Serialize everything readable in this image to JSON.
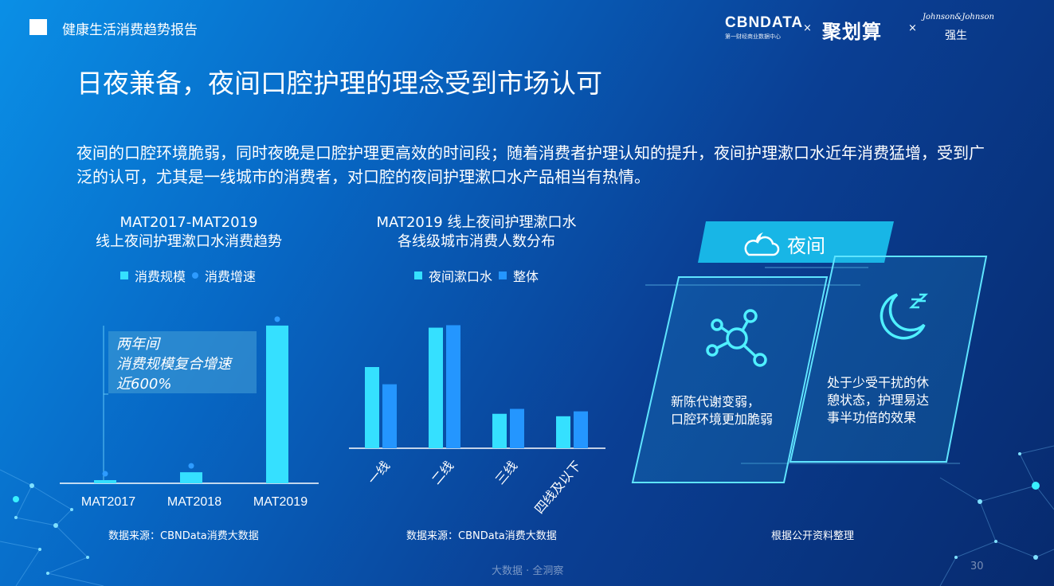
{
  "header": {
    "report_title": "健康生活消费趋势报告",
    "logo_cbndata": "CBNDATA",
    "logo_cbndata_sub": "第一财经商业数据中心",
    "logo_sep": "×",
    "logo_juhuasuan": "聚划算",
    "logo_jj": "Johnson&Johnson",
    "logo_jj_cn": "强生"
  },
  "page": {
    "title": "日夜兼备，夜间口腔护理的理念受到市场认可",
    "intro": "夜间的口腔环境脆弱，同时夜晚是口腔护理更高效的时间段；随着消费者护理认知的提升，夜间护理漱口水近年消费猛增，受到广泛的认可，尤其是一线城市的消费者，对口腔的夜间护理漱口水产品相当有热情。"
  },
  "chart_data": [
    {
      "type": "bar",
      "title_line1": "MAT2017-MAT2019",
      "title_line2": "线上夜间护理漱口水消费趋势",
      "legend": [
        {
          "label": "消费规模",
          "marker": "square",
          "color": "#35e0ff"
        },
        {
          "label": "消费增速",
          "marker": "dot",
          "color": "#2e9bff"
        }
      ],
      "categories": [
        "MAT2017",
        "MAT2018",
        "MAT2019"
      ],
      "series": [
        {
          "name": "消费规模",
          "values": [
            2,
            7,
            100
          ],
          "color": "#35e0ff"
        }
      ],
      "ylim": [
        0,
        105
      ],
      "callout": [
        "两年间",
        "消费规模复合增速",
        "近600%"
      ],
      "source": "数据来源：CBNData消费大数据"
    },
    {
      "type": "bar",
      "title_line1": "MAT2019 线上夜间护理漱口水",
      "title_line2": "各线级城市消费人数分布",
      "legend": [
        {
          "label": "夜间漱口水",
          "marker": "square",
          "color": "#35e0ff"
        },
        {
          "label": "整体",
          "marker": "square",
          "color": "#2496ff"
        }
      ],
      "categories": [
        "一线",
        "二线",
        "三线",
        "四线及以下"
      ],
      "series": [
        {
          "name": "夜间漱口水",
          "values": [
            33,
            49,
            14,
            13
          ],
          "color": "#35e0ff"
        },
        {
          "name": "整体",
          "values": [
            26,
            50,
            16,
            15
          ],
          "color": "#2496ff"
        }
      ],
      "ylim": [
        0,
        55
      ],
      "source": "数据来源：CBNData消费大数据"
    }
  ],
  "night_panel": {
    "tag": "夜间",
    "card1_lines": [
      "新陈代谢变弱，",
      "口腔环境更加脆弱"
    ],
    "card2_lines": [
      "处于少受干扰的休",
      "憩状态，护理易达",
      "事半功倍的效果"
    ],
    "source": "根据公开资料整理",
    "icons": [
      "cloud-moon-icon",
      "molecule-icon",
      "sleep-moon-icon"
    ]
  },
  "footer": {
    "tagline": "大数据 · 全洞察",
    "page_number": "30"
  }
}
